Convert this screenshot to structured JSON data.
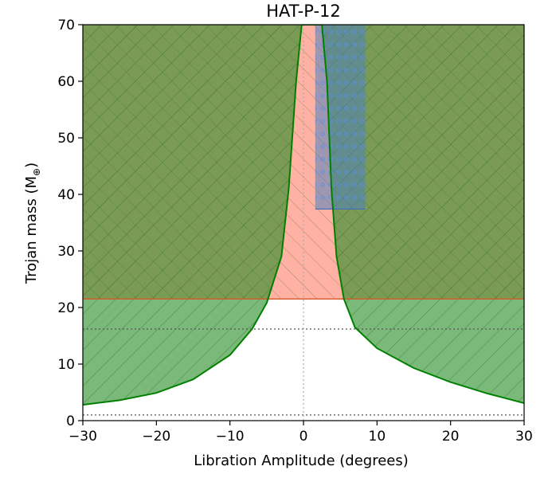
{
  "chart_data": {
    "type": "area",
    "title": "HAT-P-12",
    "xlabel": "Libration Amplitude (degrees)",
    "ylabel": "Trojan mass (M",
    "ylabel_subscript": "⊕",
    "ylabel_close": ")",
    "xlim": [
      -30,
      30
    ],
    "ylim": [
      0,
      70
    ],
    "x_ticks": [
      -30,
      -20,
      -10,
      0,
      10,
      20,
      30
    ],
    "x_tick_labels": [
      "−30",
      "−20",
      "−10",
      "0",
      "10",
      "20",
      "30"
    ],
    "y_ticks": [
      0,
      10,
      20,
      30,
      40,
      50,
      60,
      70
    ],
    "y_tick_labels": [
      "0",
      "10",
      "20",
      "30",
      "40",
      "50",
      "60",
      "70"
    ],
    "regions": [
      {
        "name": "red-excluded",
        "color": "#ff6347",
        "y_min": 21.5,
        "envelope_x_at_y_min": [
          -3.4,
          5.5
        ]
      },
      {
        "name": "green-excluded",
        "color": "#228b22",
        "boundary": "curve"
      },
      {
        "name": "blue-box",
        "color": "#4f81bd",
        "x": [
          1.6,
          8.4
        ],
        "y": [
          37.4,
          70
        ]
      }
    ],
    "boundary_curve": {
      "color": "#008000",
      "points": [
        [
          -30,
          2.8
        ],
        [
          -25,
          3.6
        ],
        [
          -20,
          4.9
        ],
        [
          -15,
          7.3
        ],
        [
          -10,
          11.6
        ],
        [
          -7,
          16.2
        ],
        [
          -5,
          20.8
        ],
        [
          -3,
          29
        ],
        [
          -2,
          41
        ],
        [
          -1,
          60
        ],
        [
          -0.25,
          70
        ],
        [
          2.5,
          70
        ],
        [
          3.2,
          60
        ],
        [
          3.8,
          41
        ],
        [
          4.5,
          29
        ],
        [
          5.5,
          21.5
        ],
        [
          7,
          16.5
        ],
        [
          10,
          12.8
        ],
        [
          15,
          9.3
        ],
        [
          20,
          6.8
        ],
        [
          25,
          4.8
        ],
        [
          30,
          3.1
        ]
      ]
    },
    "horizontal_dotted_lines": [
      1,
      16.2,
      21.5
    ],
    "vertical_dotted_line": 0,
    "hatch": "diagonal",
    "grid": false,
    "legend": "none"
  }
}
